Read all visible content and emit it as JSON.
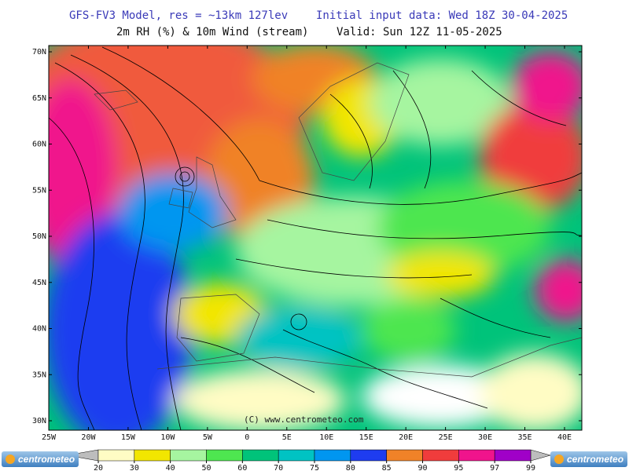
{
  "header": {
    "title_left": "GFS-FV3 Model, res = ~13km 127lev",
    "title_right": "Initial input data: Wed 18Z 30-04-2025",
    "subtitle_left": "2m RH (%) & 10m Wind (stream)",
    "subtitle_right": "Valid: Sun 12Z 11-05-2025"
  },
  "map": {
    "lat_labels": [
      "70N",
      "65N",
      "60N",
      "55N",
      "50N",
      "45N",
      "40N",
      "35N",
      "30N"
    ],
    "lon_labels": [
      "25W",
      "20W",
      "15W",
      "10W",
      "5W",
      "0",
      "5E",
      "10E",
      "15E",
      "20E",
      "25E",
      "30E",
      "35E",
      "40E"
    ],
    "watermark": "(C) www.centrometeo.com"
  },
  "colorbar": {
    "levels": [
      20,
      30,
      40,
      50,
      60,
      70,
      75,
      80,
      85,
      90,
      95,
      97,
      99
    ],
    "colors": [
      "#fffcc4",
      "#f2e600",
      "#a6f5a0",
      "#4ee650",
      "#00c37a",
      "#00c3c3",
      "#0096f0",
      "#1e3cf0",
      "#f08228",
      "#f03c3c",
      "#f0148c",
      "#a000c8"
    ]
  },
  "logos": {
    "left": "centrometeo",
    "right": "centrometeo"
  }
}
